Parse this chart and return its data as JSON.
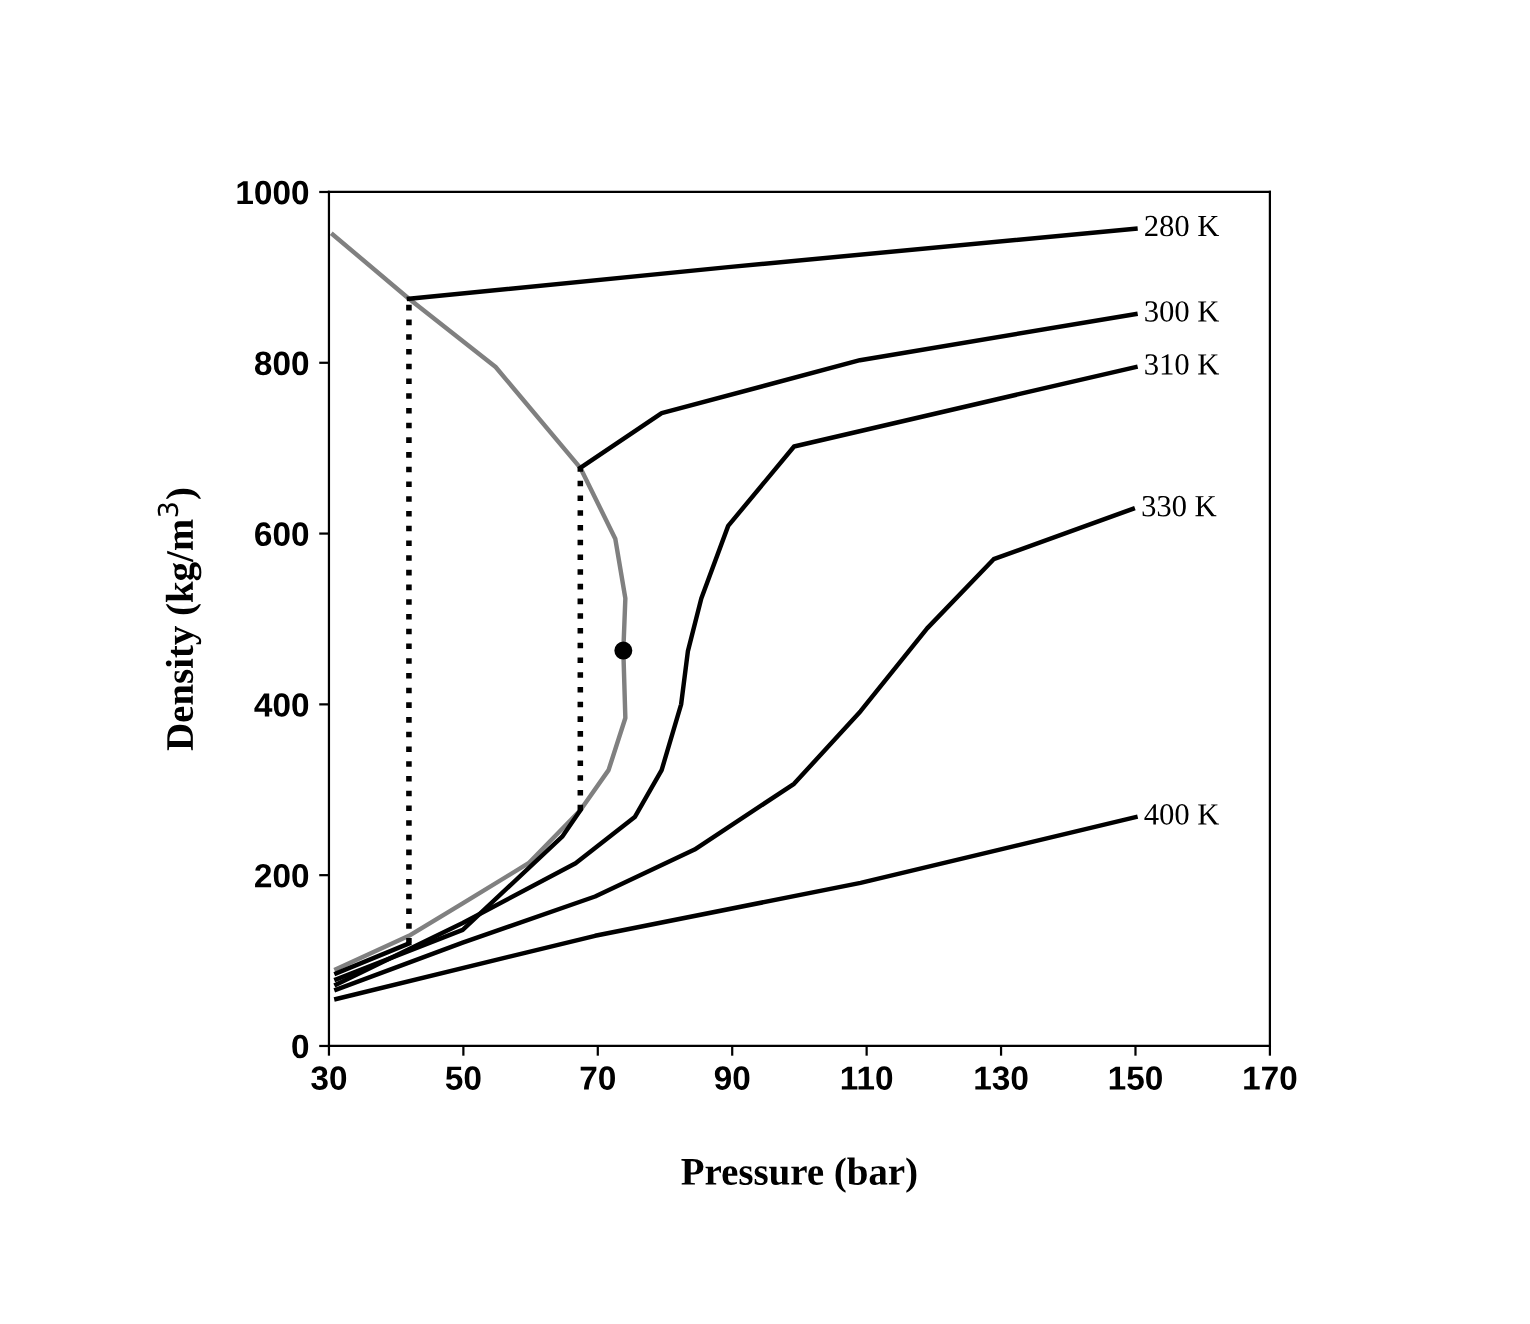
{
  "chart_data": {
    "type": "line",
    "xlabel": "Pressure (bar)",
    "ylabel": "Density (kg/m$^{3}$)",
    "xlim": [
      30,
      170
    ],
    "ylim": [
      0,
      1000
    ],
    "xticks": [
      30,
      50,
      70,
      90,
      110,
      130,
      150,
      170
    ],
    "yticks": [
      0,
      200,
      400,
      600,
      800,
      1000
    ],
    "grid": false,
    "legend": false,
    "marker": "none",
    "line_style": "solid",
    "series": [
      {
        "color": "#808080",
        "x": [
          30.6,
          41.9,
          54.8,
          67.4,
          72.6,
          74.1,
          73.8,
          74.1,
          71.6,
          67.4,
          59.7,
          49.9,
          41.9,
          31.1
        ],
        "values": [
          950,
          875,
          795,
          677,
          594,
          524,
          463,
          384,
          323,
          276,
          214,
          167,
          129,
          90
        ]
      },
      {
        "color": "#000000",
        "x": [
          31.1,
          41.9
        ],
        "values": [
          85,
          120
        ]
      },
      {
        "name": "280 K",
        "color": "#000000",
        "x": [
          41.9,
          89.4,
          150
        ],
        "values": [
          875,
          912,
          957
        ]
      },
      {
        "color": "#000000",
        "x": [
          31.1,
          49.9,
          64.7,
          67.4
        ],
        "values": [
          78,
          136,
          245,
          276
        ]
      },
      {
        "name": "300 K",
        "color": "#000000",
        "x": [
          67.4,
          79.5,
          109,
          150
        ],
        "values": [
          677,
          741,
          803,
          857
        ]
      },
      {
        "name": "310 K",
        "color": "#000000",
        "x": [
          31.1,
          49.9,
          66.7,
          75.5,
          79.5,
          82.4,
          83.4,
          85.4,
          89.4,
          99.2,
          150
        ],
        "values": [
          72,
          144,
          214,
          268,
          323,
          400,
          462,
          524,
          609,
          702,
          795
        ]
      },
      {
        "name": "330 K",
        "color": "#000000",
        "x": [
          31.1,
          49.9,
          69.6,
          84.4,
          99.2,
          109.1,
          119,
          128.9,
          149.6
        ],
        "values": [
          66,
          121,
          175,
          230,
          307,
          392,
          489,
          570,
          629
        ]
      },
      {
        "name": "400 K",
        "color": "#000000",
        "x": [
          31.1,
          69.6,
          109.1,
          150
        ],
        "values": [
          55,
          129,
          191,
          268
        ]
      },
      {
        "color": "#000000",
        "line_style": "dotted",
        "x": [
          41.9,
          41.9
        ],
        "values": [
          120,
          875
        ]
      },
      {
        "color": "#000000",
        "line_style": "dotted",
        "x": [
          67.4,
          67.4
        ],
        "values": [
          276,
          677
        ]
      },
      {
        "type": "scatter",
        "marker": "circle",
        "color": "#000000",
        "x": [
          73.8
        ],
        "values": [
          463
        ]
      }
    ]
  }
}
